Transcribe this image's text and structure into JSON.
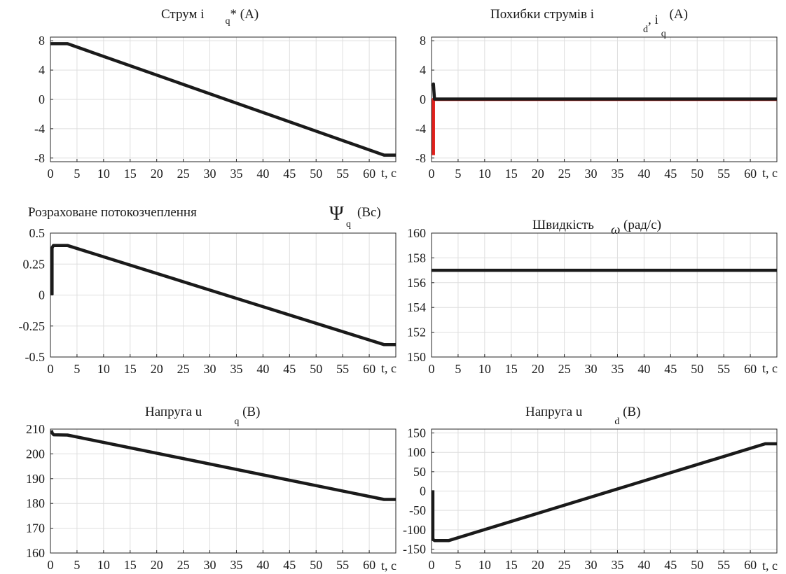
{
  "figure": {
    "background": "#ffffff",
    "grid_color": "#dedede",
    "axis_color": "#262626"
  },
  "chart_data": [
    {
      "id": "iq_ref",
      "type": "line",
      "title_parts": [
        "Струм i",
        "q",
        "* (A)"
      ],
      "xlabel": "t, c",
      "xlim": [
        0,
        65
      ],
      "ylim": [
        -8.5,
        8.5
      ],
      "grid": true,
      "x_ticks": [
        0,
        5,
        10,
        15,
        20,
        25,
        30,
        35,
        40,
        45,
        50,
        55,
        60
      ],
      "y_ticks": [
        {
          "v": 8,
          "label": "8"
        },
        {
          "v": 4,
          "label": "4"
        },
        {
          "v": 0,
          "label": "0"
        },
        {
          "v": -4,
          "label": "-4"
        },
        {
          "v": -8,
          "label": "-8"
        }
      ],
      "series": [
        {
          "color": "#1a1a1a",
          "x": [
            0,
            3.2,
            62.8,
            65
          ],
          "y": [
            7.6,
            7.6,
            -7.6,
            -7.6
          ]
        }
      ]
    },
    {
      "id": "current_errors",
      "type": "line",
      "title_parts": [
        "Похибки струмів i",
        "d",
        ", i",
        "q",
        " (A)"
      ],
      "xlabel": "t, c",
      "xlim": [
        0,
        65
      ],
      "ylim": [
        -8.5,
        8.5
      ],
      "grid": true,
      "x_ticks": [
        0,
        5,
        10,
        15,
        20,
        25,
        30,
        35,
        40,
        45,
        50,
        55,
        60
      ],
      "y_ticks": [
        {
          "v": 8,
          "label": "8"
        },
        {
          "v": 4,
          "label": "4"
        },
        {
          "v": 0,
          "label": "0"
        },
        {
          "v": -4,
          "label": "-4"
        },
        {
          "v": -8,
          "label": "-8"
        }
      ],
      "series": [
        {
          "color": "#e0201b",
          "x": [
            0.35,
            0.35,
            0.5,
            65
          ],
          "y": [
            -7.6,
            0,
            0,
            0
          ]
        },
        {
          "color": "#1a1a1a",
          "x": [
            0.3,
            0.35,
            0.55,
            65
          ],
          "y": [
            1.8,
            2.1,
            0.05,
            0.05
          ]
        }
      ]
    },
    {
      "id": "flux_psi_q",
      "type": "line",
      "title_parts": [
        "Розраховане потокозчеплення",
        "Ψ",
        "q",
        " (Вс)"
      ],
      "xlabel": "t, c",
      "xlim": [
        0,
        65
      ],
      "ylim": [
        -0.5,
        0.5
      ],
      "grid": true,
      "x_ticks": [
        0,
        5,
        10,
        15,
        20,
        25,
        30,
        35,
        40,
        45,
        50,
        55,
        60
      ],
      "y_ticks": [
        {
          "v": 0.5,
          "label": "0.5"
        },
        {
          "v": 0.25,
          "label": "0.25"
        },
        {
          "v": 0,
          "label": "0"
        },
        {
          "v": -0.25,
          "label": "-0.25"
        },
        {
          "v": -0.5,
          "label": "-0.5"
        }
      ],
      "series": [
        {
          "color": "#1a1a1a",
          "x": [
            0.3,
            0.3,
            0.55,
            3.2,
            62.8,
            65
          ],
          "y": [
            0.0,
            0.38,
            0.4,
            0.4,
            -0.4,
            -0.4
          ]
        }
      ]
    },
    {
      "id": "speed_omega",
      "type": "line",
      "title_parts": [
        "Швидкість",
        "ω",
        " (рад/с)"
      ],
      "xlabel": "t, c",
      "xlim": [
        0,
        65
      ],
      "ylim": [
        150,
        160
      ],
      "grid": true,
      "x_ticks": [
        0,
        5,
        10,
        15,
        20,
        25,
        30,
        35,
        40,
        45,
        50,
        55,
        60
      ],
      "y_ticks": [
        {
          "v": 160,
          "label": "160"
        },
        {
          "v": 158,
          "label": "158"
        },
        {
          "v": 156,
          "label": "156"
        },
        {
          "v": 154,
          "label": "154"
        },
        {
          "v": 152,
          "label": "152"
        },
        {
          "v": 150,
          "label": "150"
        }
      ],
      "series": [
        {
          "color": "#1a1a1a",
          "x": [
            0,
            65
          ],
          "y": [
            157,
            157
          ]
        }
      ]
    },
    {
      "id": "voltage_uq",
      "type": "line",
      "title_parts": [
        "Напруга u",
        "q",
        " (B)"
      ],
      "xlabel": "t, c",
      "xlim": [
        0,
        65
      ],
      "ylim": [
        160,
        210
      ],
      "grid": true,
      "x_ticks": [
        0,
        5,
        10,
        15,
        20,
        25,
        30,
        35,
        40,
        45,
        50,
        55,
        60
      ],
      "y_ticks": [
        {
          "v": 210,
          "label": "210"
        },
        {
          "v": 200,
          "label": "200"
        },
        {
          "v": 190,
          "label": "190"
        },
        {
          "v": 180,
          "label": "180"
        },
        {
          "v": 170,
          "label": "170"
        },
        {
          "v": 160,
          "label": "160"
        }
      ],
      "series": [
        {
          "color": "#1a1a1a",
          "x": [
            0.2,
            0.3,
            0.6,
            3.2,
            62.8,
            65
          ],
          "y": [
            209.5,
            208.5,
            207.7,
            207.6,
            181.6,
            181.6
          ]
        }
      ]
    },
    {
      "id": "voltage_ud",
      "type": "line",
      "title_parts": [
        "Напруга u",
        "d",
        " (B)"
      ],
      "xlabel": "t, c",
      "xlim": [
        0,
        65
      ],
      "ylim": [
        -160,
        160
      ],
      "grid": true,
      "x_ticks": [
        0,
        5,
        10,
        15,
        20,
        25,
        30,
        35,
        40,
        45,
        50,
        55,
        60
      ],
      "y_ticks": [
        {
          "v": 150,
          "label": "150"
        },
        {
          "v": 100,
          "label": "100"
        },
        {
          "v": 50,
          "label": "50"
        },
        {
          "v": 0,
          "label": "0"
        },
        {
          "v": -50,
          "label": "-50"
        },
        {
          "v": -100,
          "label": "-100"
        },
        {
          "v": -150,
          "label": "-150"
        }
      ],
      "series": [
        {
          "color": "#1a1a1a",
          "x": [
            0.25,
            0.25,
            0.6,
            3.2,
            62.8,
            65
          ],
          "y": [
            2,
            -125,
            -128,
            -128,
            122,
            122
          ]
        }
      ]
    }
  ]
}
